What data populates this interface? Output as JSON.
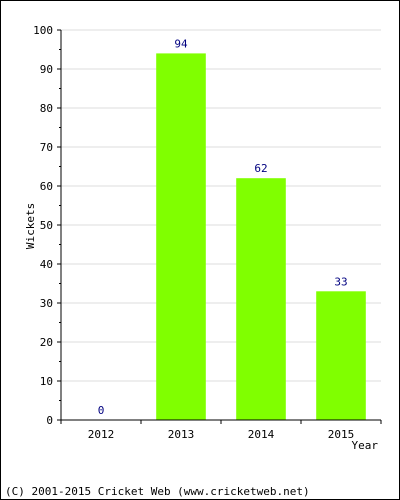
{
  "chart_data": {
    "type": "bar",
    "categories": [
      "2012",
      "2013",
      "2014",
      "2015"
    ],
    "values": [
      0,
      94,
      62,
      33
    ],
    "data_labels": [
      "0",
      "94",
      "62",
      "33"
    ],
    "ylabel": "Wickets",
    "xlabel": "Year",
    "ylim": [
      0,
      100
    ],
    "yticks": [
      "0",
      "10",
      "20",
      "30",
      "40",
      "50",
      "60",
      "70",
      "80",
      "90",
      "100"
    ],
    "grid": true,
    "bar_color": "#80ff00",
    "grid_color": "#dddddd",
    "label_color": "#000080"
  },
  "footer": {
    "copyright": "(C) 2001-2015 Cricket Web (www.cricketweb.net)"
  }
}
